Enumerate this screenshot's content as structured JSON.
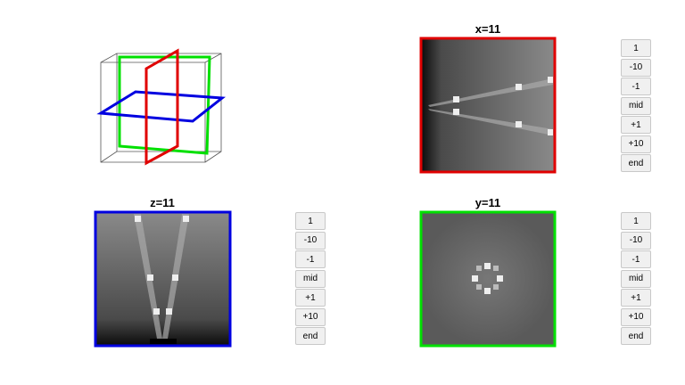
{
  "panels": [
    {
      "title": "x=11",
      "buttons": [
        "1",
        "-10",
        "-1",
        "mid",
        "+1",
        "+10",
        "end"
      ]
    },
    {
      "title": "z=11",
      "buttons": [
        "1",
        "-10",
        "-1",
        "mid",
        "+1",
        "+10",
        "end"
      ]
    },
    {
      "title": "y=11",
      "buttons": [
        "1",
        "-10",
        "-1",
        "mid",
        "+1",
        "+10",
        "end"
      ]
    }
  ]
}
